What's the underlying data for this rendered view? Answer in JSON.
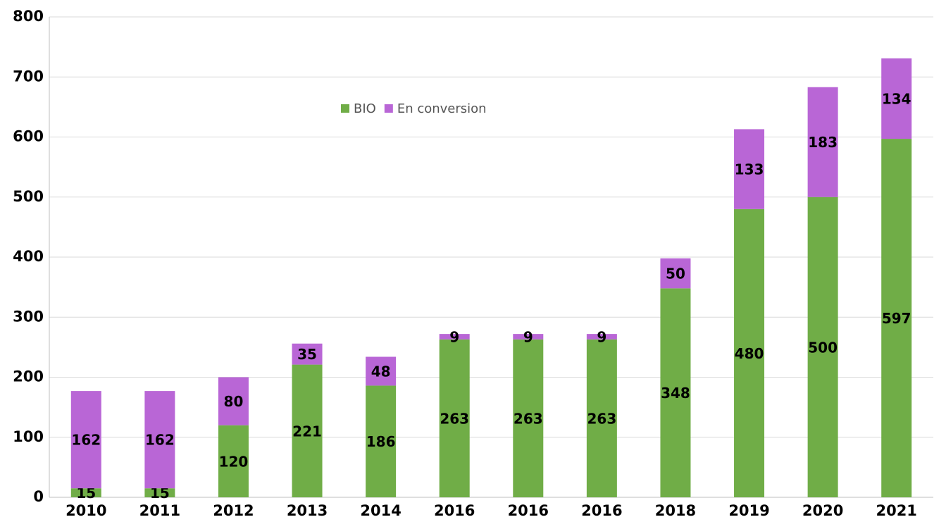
{
  "chart_data": {
    "type": "bar",
    "stacked": true,
    "categories": [
      "2010",
      "2011",
      "2012",
      "2013",
      "2014",
      "2016",
      "2016",
      "2016",
      "2018",
      "2019",
      "2020",
      "2021"
    ],
    "series": [
      {
        "name": "BIO",
        "color": "#70ad47",
        "values": [
          15,
          15,
          120,
          221,
          186,
          263,
          263,
          263,
          348,
          480,
          500,
          597
        ]
      },
      {
        "name": "En conversion",
        "color": "#b966d6",
        "values": [
          162,
          162,
          80,
          35,
          48,
          9,
          9,
          9,
          50,
          133,
          183,
          134
        ]
      }
    ],
    "ylim": [
      0,
      800
    ],
    "yticks": [
      0,
      100,
      200,
      300,
      400,
      500,
      600,
      700,
      800
    ],
    "grid": true
  }
}
